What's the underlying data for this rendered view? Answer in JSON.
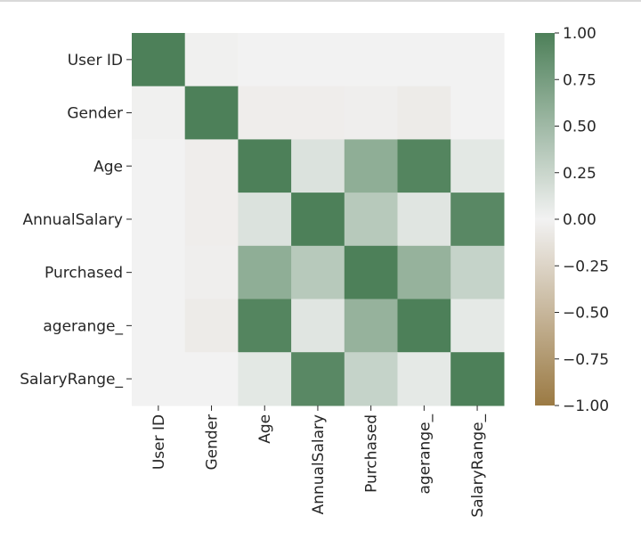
{
  "chart_data": {
    "type": "heatmap",
    "title": "",
    "xlabel": "",
    "ylabel": "",
    "x_categories": [
      "User ID",
      "Gender",
      "Age",
      "AnnualSalary",
      "Purchased",
      "agerange_",
      "SalaryRange_"
    ],
    "y_categories": [
      "User ID",
      "Gender",
      "Age",
      "AnnualSalary",
      "Purchased",
      "agerange_",
      "SalaryRange_"
    ],
    "values": [
      [
        1.0,
        -0.02,
        0.0,
        0.0,
        0.0,
        0.0,
        0.0
      ],
      [
        -0.02,
        1.0,
        -0.04,
        -0.04,
        -0.03,
        -0.06,
        0.0
      ],
      [
        0.0,
        -0.04,
        1.0,
        0.14,
        0.6,
        0.96,
        0.09
      ],
      [
        0.0,
        -0.04,
        0.14,
        1.0,
        0.36,
        0.11,
        0.93
      ],
      [
        0.0,
        -0.03,
        0.6,
        0.36,
        1.0,
        0.56,
        0.27
      ],
      [
        0.0,
        -0.06,
        0.96,
        0.11,
        0.56,
        1.0,
        0.08
      ],
      [
        0.0,
        0.0,
        0.09,
        0.93,
        0.27,
        0.08,
        1.0
      ]
    ],
    "colorbar": {
      "min": -1.0,
      "max": 1.0,
      "ticks": [
        1.0,
        0.75,
        0.5,
        0.25,
        0.0,
        -0.25,
        -0.5,
        -0.75,
        -1.0
      ],
      "tick_labels": [
        "1.00",
        "0.75",
        "0.50",
        "0.25",
        "0.00",
        "−0.25",
        "−0.50",
        "−0.75",
        "−1.00"
      ],
      "colors": {
        "negative": "#9b7a43",
        "center": "#f2f2f2",
        "positive": "#4d8059"
      }
    }
  }
}
